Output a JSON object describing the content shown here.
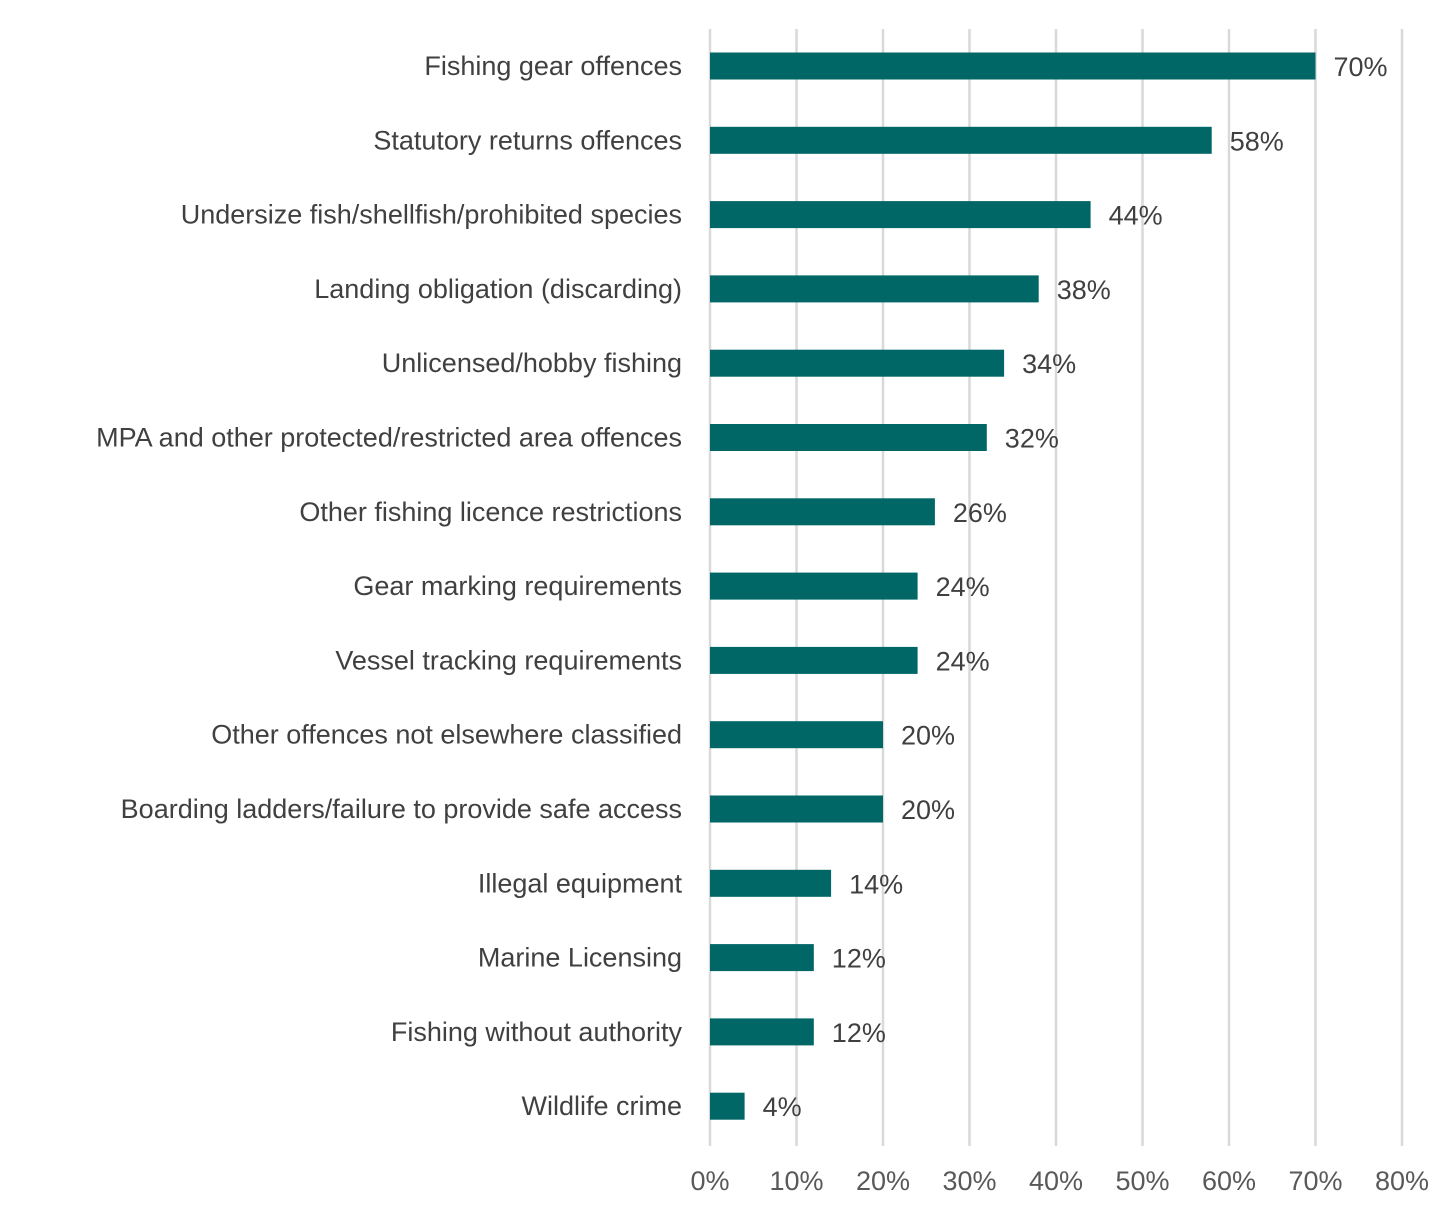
{
  "colors": {
    "bar": "#006666",
    "grid": "#d9d9d9",
    "text": "#404040"
  },
  "chart_data": {
    "type": "bar",
    "orientation": "horizontal",
    "categories": [
      "Fishing gear offences",
      "Statutory returns offences",
      "Undersize fish/shellfish/prohibited species",
      "Landing obligation (discarding)",
      "Unlicensed/hobby fishing",
      "MPA and other protected/restricted area offences",
      "Other fishing licence restrictions",
      "Gear marking requirements",
      "Vessel tracking requirements",
      "Other offences not elsewhere classified",
      "Boarding ladders/failure to provide safe access",
      "Illegal equipment",
      "Marine Licensing",
      "Fishing without authority",
      "Wildlife crime"
    ],
    "values": [
      70,
      58,
      44,
      38,
      34,
      32,
      26,
      24,
      24,
      20,
      20,
      14,
      12,
      12,
      4
    ],
    "value_labels": [
      "70%",
      "58%",
      "44%",
      "38%",
      "34%",
      "32%",
      "26%",
      "24%",
      "24%",
      "20%",
      "20%",
      "14%",
      "12%",
      "12%",
      "4%"
    ],
    "xlim": [
      0,
      80
    ],
    "xticks": [
      0,
      10,
      20,
      30,
      40,
      50,
      60,
      70,
      80
    ],
    "xtick_labels": [
      "0%",
      "10%",
      "20%",
      "30%",
      "40%",
      "50%",
      "60%",
      "70%",
      "80%"
    ],
    "grid": "vertical",
    "legend": "none"
  }
}
